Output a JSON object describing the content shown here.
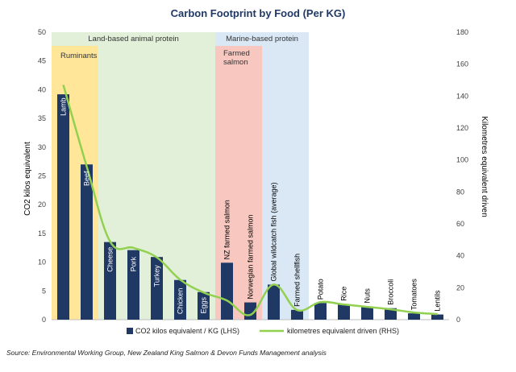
{
  "chart_data": {
    "type": "bar",
    "title": "Carbon Footprint by Food (Per KG)",
    "ylabel": "CO2 kilos equivalent",
    "y2label": "Kilometres equivalent driven",
    "ylim": [
      0,
      50
    ],
    "y2lim": [
      0,
      180
    ],
    "yticks": [
      "0",
      "5",
      "10",
      "15",
      "20",
      "25",
      "30",
      "35",
      "40",
      "45",
      "50"
    ],
    "y2ticks": [
      "0",
      "20",
      "40",
      "60",
      "80",
      "100",
      "120",
      "140",
      "160",
      "180"
    ],
    "categories": [
      "Lamb",
      "Beef",
      "Cheese",
      "Pork",
      "Turkey",
      "Chicken",
      "Eggs",
      "NZ farmed salmon",
      "Norwegian farmed salmon",
      "Global wildcatch fish (average)",
      "Farmed shellfish",
      "Potato",
      "Rice",
      "Nuts",
      "Broccoli",
      "Tomatoes",
      "Lentils"
    ],
    "series": [
      {
        "name": "CO2 kilos equivalent / KG (LHS)",
        "axis": "left",
        "type": "bar",
        "color": "#1f3864",
        "values": [
          39.2,
          27.0,
          13.5,
          12.1,
          10.9,
          6.9,
          4.8,
          9.9,
          3.0,
          6.1,
          1.7,
          2.9,
          2.7,
          2.3,
          2.0,
          1.1,
          0.9
        ]
      },
      {
        "name": "kilometres equivalent driven (RHS)",
        "axis": "right",
        "type": "line",
        "color": "#92d050",
        "values": [
          147,
          96,
          49,
          45,
          39,
          25,
          17,
          12,
          3,
          22,
          6,
          11,
          9.5,
          8,
          6.5,
          4.5,
          3.5
        ]
      }
    ],
    "regions": [
      {
        "label": "Land-based animal protein",
        "from": 0,
        "to": 6,
        "color": "#e2efd9"
      },
      {
        "label": "Ruminants",
        "from": 0,
        "to": 1,
        "color": "#ffe699"
      },
      {
        "label": "Marine-based protein",
        "from": 7,
        "to": 10,
        "color": "#dae8f5"
      },
      {
        "label": "Farmed salmon",
        "from": 7,
        "to": 8,
        "color": "#f8c8c0",
        "label_lines": [
          "Farmed",
          "salmon"
        ]
      }
    ],
    "legend_position": "bottom",
    "grid": false
  },
  "source": "Source:  Environmental Working Group, New Zealand King Salmon & Devon Funds Management analysis"
}
